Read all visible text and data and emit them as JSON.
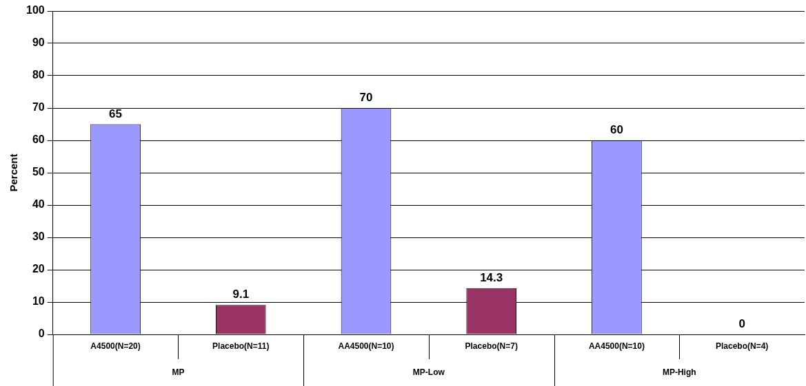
{
  "chart_data": {
    "type": "bar",
    "ylabel": "Percent",
    "categories": [
      "A4500(N=20)",
      "Placebo(N=11)",
      "AA4500(N=10)",
      "Placebo(N=7)",
      "AA4500(N=10)",
      "Placebo(N=4)"
    ],
    "values": [
      65,
      9.1,
      70,
      14.3,
      60,
      0
    ],
    "colors": [
      "#9999ff",
      "#993366",
      "#9999ff",
      "#993366",
      "#9999ff",
      "#993366"
    ],
    "ylim": [
      0,
      100
    ],
    "yticks": [
      0,
      10,
      20,
      30,
      40,
      50,
      60,
      70,
      80,
      90,
      100
    ],
    "grid": "y",
    "data_labels": true,
    "legend": false,
    "annotations": [
      "MP",
      "MP-Low",
      "MP-High"
    ]
  }
}
